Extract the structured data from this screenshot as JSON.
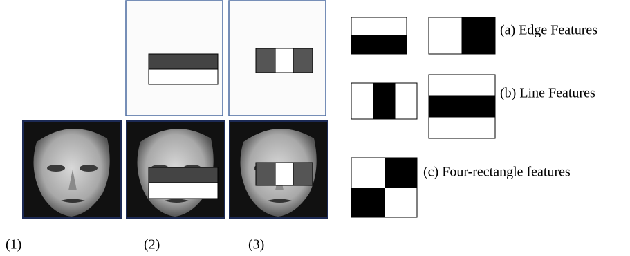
{
  "panels": [
    {
      "label": "(1)"
    },
    {
      "label": "(2)"
    },
    {
      "label": "(3)"
    }
  ],
  "features": [
    {
      "label": "(a) Edge Features"
    },
    {
      "label": "(b) Line Features"
    },
    {
      "label": "(c) Four-rectangle features"
    }
  ]
}
